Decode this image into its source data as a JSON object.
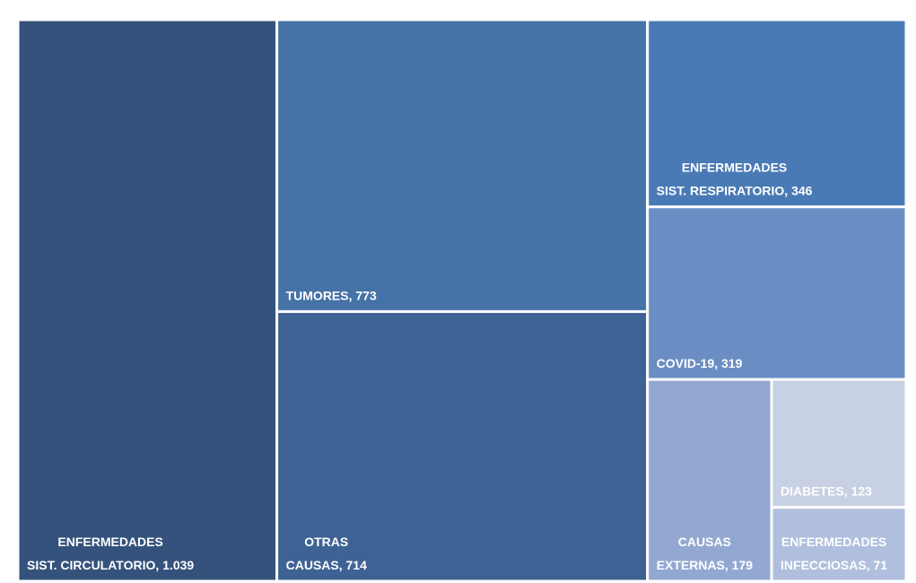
{
  "chart_data": {
    "type": "treemap",
    "categories": [
      [
        "ENFERMEDADES",
        "SIST. CIRCULATORIO"
      ],
      [
        "TUMORES"
      ],
      [
        "OTRAS",
        "CAUSAS"
      ],
      [
        "ENFERMEDADES",
        "SIST. RESPIRATORIO"
      ],
      [
        "COVID-19"
      ],
      [
        "CAUSAS",
        "EXTERNAS"
      ],
      [
        "DIABETES"
      ],
      [
        "ENFERMEDADES",
        "INFECCIOSAS"
      ]
    ],
    "values": [
      1039,
      773,
      714,
      346,
      319,
      179,
      123,
      71
    ],
    "value_labels": [
      "1.039",
      "773",
      "714",
      "346",
      "319",
      "179",
      "123",
      "71"
    ],
    "label_separator": ", ",
    "colors": [
      "#34527c",
      "#4673a7",
      "#3e6293",
      "#4a7ab6",
      "#6a8ec4",
      "#93a8d1",
      "#c8d0e3",
      "#b0bfdd"
    ]
  }
}
